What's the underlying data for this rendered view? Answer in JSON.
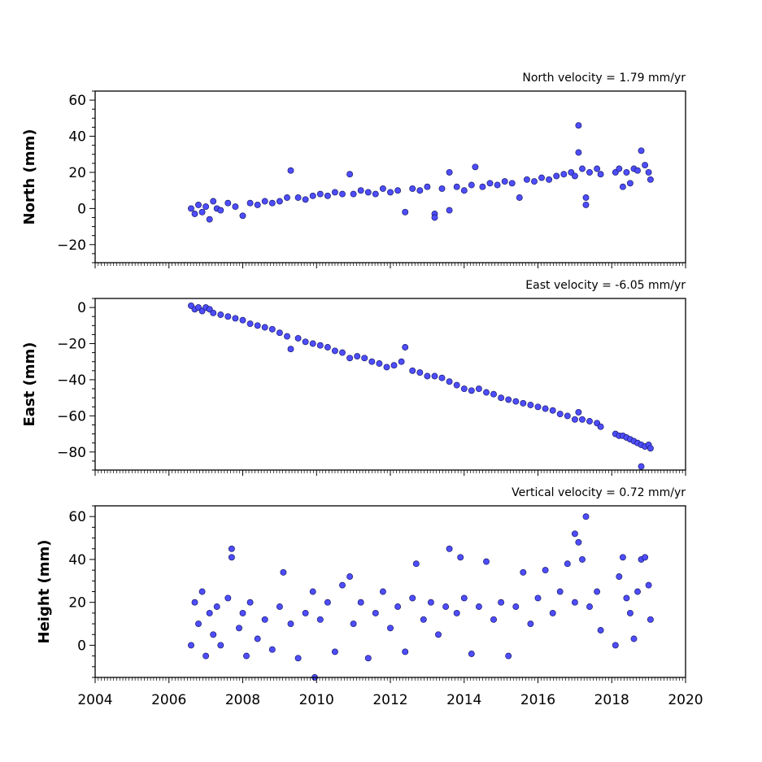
{
  "chart_data": [
    {
      "type": "scatter",
      "title": "North velocity = 1.79 mm/yr",
      "ylabel": "North (mm)",
      "xlim": [
        2004,
        2020
      ],
      "ylim": [
        -30,
        65
      ],
      "yticks": [
        -20,
        0,
        20,
        40,
        60
      ],
      "xticks": [
        2004,
        2006,
        2008,
        2010,
        2012,
        2014,
        2016,
        2018,
        2020
      ],
      "series": [
        {
          "color": "#4d4dff",
          "edge_color": "#1a1a66",
          "points": [
            [
              2006.6,
              0.0
            ],
            [
              2006.7,
              -3.0
            ],
            [
              2006.8,
              2.0
            ],
            [
              2006.9,
              -2.0
            ],
            [
              2007.0,
              1.0
            ],
            [
              2007.1,
              -6.0
            ],
            [
              2007.2,
              4.0
            ],
            [
              2007.3,
              0.0
            ],
            [
              2007.4,
              -1.0
            ],
            [
              2007.6,
              3.0
            ],
            [
              2007.8,
              1.0
            ],
            [
              2008.0,
              -4.0
            ],
            [
              2008.2,
              3.0
            ],
            [
              2008.4,
              2.0
            ],
            [
              2008.6,
              4.0
            ],
            [
              2008.8,
              3.0
            ],
            [
              2009.0,
              4.0
            ],
            [
              2009.2,
              6.0
            ],
            [
              2009.3,
              21.0
            ],
            [
              2009.5,
              6.0
            ],
            [
              2009.7,
              5.0
            ],
            [
              2009.9,
              7.0
            ],
            [
              2010.1,
              8.0
            ],
            [
              2010.3,
              7.0
            ],
            [
              2010.5,
              9.0
            ],
            [
              2010.7,
              8.0
            ],
            [
              2010.9,
              19.0
            ],
            [
              2011.0,
              8.0
            ],
            [
              2011.2,
              10.0
            ],
            [
              2011.4,
              9.0
            ],
            [
              2011.6,
              8.0
            ],
            [
              2011.8,
              11.0
            ],
            [
              2012.0,
              9.0
            ],
            [
              2012.2,
              10.0
            ],
            [
              2012.4,
              -2.0
            ],
            [
              2012.6,
              11.0
            ],
            [
              2012.8,
              10.0
            ],
            [
              2013.0,
              12.0
            ],
            [
              2013.2,
              -3.0
            ],
            [
              2013.2,
              -5.0
            ],
            [
              2013.4,
              11.0
            ],
            [
              2013.6,
              -1.0
            ],
            [
              2013.6,
              20.0
            ],
            [
              2013.8,
              12.0
            ],
            [
              2014.0,
              10.0
            ],
            [
              2014.2,
              13.0
            ],
            [
              2014.3,
              23.0
            ],
            [
              2014.5,
              12.0
            ],
            [
              2014.7,
              14.0
            ],
            [
              2014.9,
              13.0
            ],
            [
              2015.1,
              15.0
            ],
            [
              2015.3,
              14.0
            ],
            [
              2015.5,
              6.0
            ],
            [
              2015.7,
              16.0
            ],
            [
              2015.9,
              15.0
            ],
            [
              2016.1,
              17.0
            ],
            [
              2016.3,
              16.0
            ],
            [
              2016.5,
              18.0
            ],
            [
              2016.7,
              19.0
            ],
            [
              2016.9,
              20.0
            ],
            [
              2017.0,
              18.0
            ],
            [
              2017.1,
              46.0
            ],
            [
              2017.1,
              31.0
            ],
            [
              2017.2,
              22.0
            ],
            [
              2017.3,
              2.0
            ],
            [
              2017.3,
              6.0
            ],
            [
              2017.4,
              20.0
            ],
            [
              2017.6,
              22.0
            ],
            [
              2017.7,
              19.0
            ],
            [
              2018.1,
              20.0
            ],
            [
              2018.2,
              22.0
            ],
            [
              2018.3,
              12.0
            ],
            [
              2018.4,
              20.0
            ],
            [
              2018.5,
              14.0
            ],
            [
              2018.6,
              22.0
            ],
            [
              2018.7,
              21.0
            ],
            [
              2018.8,
              32.0
            ],
            [
              2018.9,
              24.0
            ],
            [
              2019.0,
              20.0
            ],
            [
              2019.05,
              16.0
            ]
          ]
        }
      ]
    },
    {
      "type": "scatter",
      "title": "East velocity = -6.05 mm/yr",
      "ylabel": "East (mm)",
      "xlim": [
        2004,
        2020
      ],
      "ylim": [
        -90,
        5
      ],
      "yticks": [
        -80,
        -60,
        -40,
        -20,
        0
      ],
      "xticks": [
        2004,
        2006,
        2008,
        2010,
        2012,
        2014,
        2016,
        2018,
        2020
      ],
      "series": [
        {
          "color": "#4d4dff",
          "edge_color": "#1a1a66",
          "points": [
            [
              2006.6,
              1.0
            ],
            [
              2006.7,
              -1.0
            ],
            [
              2006.8,
              0.0
            ],
            [
              2006.9,
              -2.0
            ],
            [
              2007.0,
              0.0
            ],
            [
              2007.1,
              -1.0
            ],
            [
              2007.2,
              -3.0
            ],
            [
              2007.4,
              -4.0
            ],
            [
              2007.6,
              -5.0
            ],
            [
              2007.8,
              -6.0
            ],
            [
              2008.0,
              -7.0
            ],
            [
              2008.2,
              -9.0
            ],
            [
              2008.4,
              -10.0
            ],
            [
              2008.6,
              -11.0
            ],
            [
              2008.8,
              -12.0
            ],
            [
              2009.0,
              -14.0
            ],
            [
              2009.2,
              -16.0
            ],
            [
              2009.3,
              -23.0
            ],
            [
              2009.5,
              -17.0
            ],
            [
              2009.7,
              -19.0
            ],
            [
              2009.9,
              -20.0
            ],
            [
              2010.1,
              -21.0
            ],
            [
              2010.3,
              -22.0
            ],
            [
              2010.5,
              -24.0
            ],
            [
              2010.7,
              -25.0
            ],
            [
              2010.9,
              -28.0
            ],
            [
              2011.1,
              -27.0
            ],
            [
              2011.3,
              -28.0
            ],
            [
              2011.5,
              -30.0
            ],
            [
              2011.7,
              -31.0
            ],
            [
              2011.9,
              -33.0
            ],
            [
              2012.1,
              -32.0
            ],
            [
              2012.3,
              -30.0
            ],
            [
              2012.4,
              -22.0
            ],
            [
              2012.6,
              -35.0
            ],
            [
              2012.8,
              -36.0
            ],
            [
              2013.0,
              -38.0
            ],
            [
              2013.2,
              -38.0
            ],
            [
              2013.4,
              -39.0
            ],
            [
              2013.6,
              -41.0
            ],
            [
              2013.8,
              -43.0
            ],
            [
              2014.0,
              -45.0
            ],
            [
              2014.2,
              -46.0
            ],
            [
              2014.4,
              -45.0
            ],
            [
              2014.6,
              -47.0
            ],
            [
              2014.8,
              -48.0
            ],
            [
              2015.0,
              -50.0
            ],
            [
              2015.2,
              -51.0
            ],
            [
              2015.4,
              -52.0
            ],
            [
              2015.6,
              -53.0
            ],
            [
              2015.8,
              -54.0
            ],
            [
              2016.0,
              -55.0
            ],
            [
              2016.2,
              -56.0
            ],
            [
              2016.4,
              -57.0
            ],
            [
              2016.6,
              -59.0
            ],
            [
              2016.8,
              -60.0
            ],
            [
              2017.0,
              -62.0
            ],
            [
              2017.1,
              -58.0
            ],
            [
              2017.2,
              -62.0
            ],
            [
              2017.4,
              -63.0
            ],
            [
              2017.6,
              -64.0
            ],
            [
              2017.7,
              -66.0
            ],
            [
              2018.1,
              -70.0
            ],
            [
              2018.2,
              -71.0
            ],
            [
              2018.3,
              -71.0
            ],
            [
              2018.4,
              -72.0
            ],
            [
              2018.5,
              -73.0
            ],
            [
              2018.6,
              -74.0
            ],
            [
              2018.7,
              -75.0
            ],
            [
              2018.8,
              -76.0
            ],
            [
              2018.8,
              -88.0
            ],
            [
              2018.9,
              -77.0
            ],
            [
              2019.0,
              -76.0
            ],
            [
              2019.05,
              -78.0
            ]
          ]
        }
      ]
    },
    {
      "type": "scatter",
      "title": "Vertical velocity = 0.72 mm/yr",
      "ylabel": "Height (mm)",
      "xlim": [
        2004,
        2020
      ],
      "ylim": [
        -15,
        65
      ],
      "yticks": [
        0,
        20,
        40,
        60
      ],
      "xticks": [
        2004,
        2006,
        2008,
        2010,
        2012,
        2014,
        2016,
        2018,
        2020
      ],
      "series": [
        {
          "color": "#4d4dff",
          "edge_color": "#1a1a66",
          "points": [
            [
              2006.6,
              0.0
            ],
            [
              2006.7,
              20.0
            ],
            [
              2006.8,
              10.0
            ],
            [
              2006.9,
              25.0
            ],
            [
              2007.0,
              -5.0
            ],
            [
              2007.1,
              15.0
            ],
            [
              2007.2,
              5.0
            ],
            [
              2007.3,
              18.0
            ],
            [
              2007.4,
              0.0
            ],
            [
              2007.6,
              22.0
            ],
            [
              2007.7,
              45.0
            ],
            [
              2007.7,
              41.0
            ],
            [
              2007.9,
              8.0
            ],
            [
              2008.0,
              15.0
            ],
            [
              2008.1,
              -5.0
            ],
            [
              2008.2,
              20.0
            ],
            [
              2008.4,
              3.0
            ],
            [
              2008.6,
              12.0
            ],
            [
              2008.8,
              -2.0
            ],
            [
              2009.0,
              18.0
            ],
            [
              2009.1,
              34.0
            ],
            [
              2009.3,
              10.0
            ],
            [
              2009.5,
              -6.0
            ],
            [
              2009.7,
              15.0
            ],
            [
              2009.9,
              25.0
            ],
            [
              2009.95,
              -15.0
            ],
            [
              2010.1,
              12.0
            ],
            [
              2010.3,
              20.0
            ],
            [
              2010.5,
              -3.0
            ],
            [
              2010.7,
              28.0
            ],
            [
              2010.9,
              32.0
            ],
            [
              2011.0,
              10.0
            ],
            [
              2011.2,
              20.0
            ],
            [
              2011.4,
              -6.0
            ],
            [
              2011.6,
              15.0
            ],
            [
              2011.8,
              25.0
            ],
            [
              2012.0,
              8.0
            ],
            [
              2012.2,
              18.0
            ],
            [
              2012.4,
              -3.0
            ],
            [
              2012.6,
              22.0
            ],
            [
              2012.7,
              38.0
            ],
            [
              2012.9,
              12.0
            ],
            [
              2013.1,
              20.0
            ],
            [
              2013.3,
              5.0
            ],
            [
              2013.5,
              18.0
            ],
            [
              2013.6,
              45.0
            ],
            [
              2013.8,
              15.0
            ],
            [
              2013.9,
              41.0
            ],
            [
              2014.0,
              22.0
            ],
            [
              2014.2,
              -4.0
            ],
            [
              2014.4,
              18.0
            ],
            [
              2014.6,
              39.0
            ],
            [
              2014.8,
              12.0
            ],
            [
              2015.0,
              20.0
            ],
            [
              2015.2,
              -5.0
            ],
            [
              2015.4,
              18.0
            ],
            [
              2015.6,
              34.0
            ],
            [
              2015.8,
              10.0
            ],
            [
              2016.0,
              22.0
            ],
            [
              2016.2,
              35.0
            ],
            [
              2016.4,
              15.0
            ],
            [
              2016.6,
              25.0
            ],
            [
              2016.8,
              38.0
            ],
            [
              2017.0,
              20.0
            ],
            [
              2017.0,
              52.0
            ],
            [
              2017.1,
              48.0
            ],
            [
              2017.2,
              40.0
            ],
            [
              2017.3,
              60.0
            ],
            [
              2017.4,
              18.0
            ],
            [
              2017.6,
              25.0
            ],
            [
              2017.7,
              7.0
            ],
            [
              2018.1,
              0.0
            ],
            [
              2018.2,
              32.0
            ],
            [
              2018.3,
              41.0
            ],
            [
              2018.4,
              22.0
            ],
            [
              2018.5,
              15.0
            ],
            [
              2018.6,
              3.0
            ],
            [
              2018.7,
              25.0
            ],
            [
              2018.8,
              40.0
            ],
            [
              2018.9,
              41.0
            ],
            [
              2019.0,
              28.0
            ],
            [
              2019.05,
              12.0
            ]
          ]
        }
      ]
    }
  ]
}
